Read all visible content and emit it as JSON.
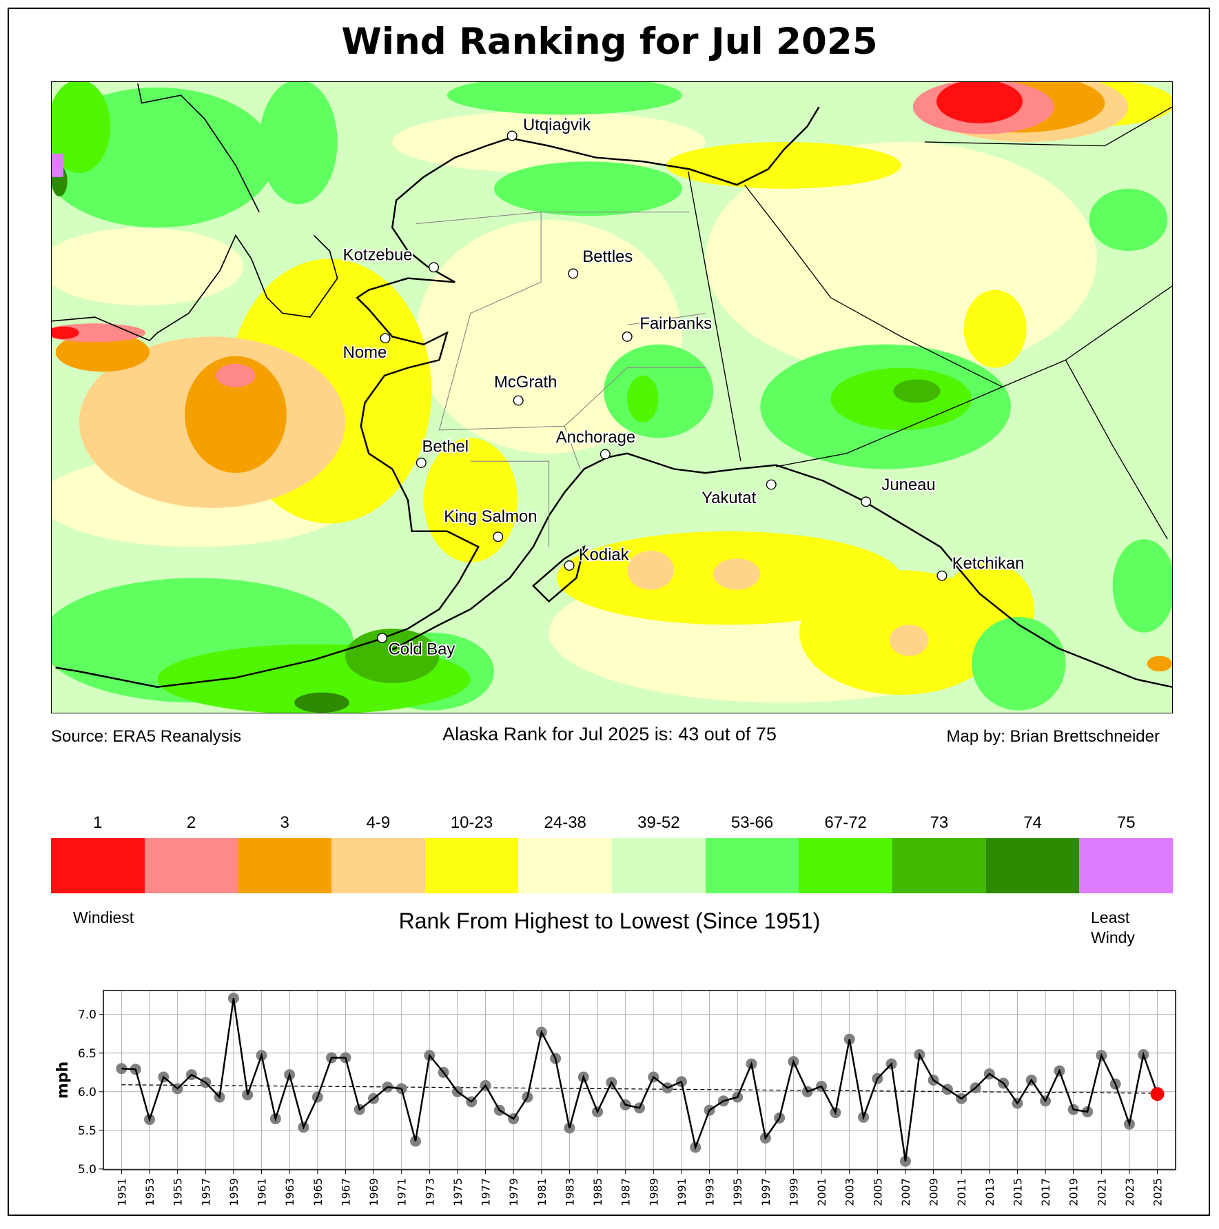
{
  "title": "Wind Ranking for Jul 2025",
  "footer": {
    "source": "Source: ERA5 Reanalysis",
    "rank_text": "Alaska Rank for Jul 2025 is: 43 out of 75",
    "credit": "Map by: Brian Brettschneider"
  },
  "map": {
    "cities": [
      "Utqiaġvik",
      "Kotzebue",
      "Bettles",
      "Fairbanks",
      "Nome",
      "McGrath",
      "Bethel",
      "Anchorage",
      "Yakutat",
      "Juneau",
      "King Salmon",
      "Kodiak",
      "Ketchikan",
      "Cold Bay"
    ]
  },
  "legend": {
    "bins": [
      {
        "label": "1",
        "color": "#ff1010"
      },
      {
        "label": "2",
        "color": "#ff8888"
      },
      {
        "label": "3",
        "color": "#f5a000"
      },
      {
        "label": "4-9",
        "color": "#ffd488"
      },
      {
        "label": "10-23",
        "color": "#ffff10"
      },
      {
        "label": "24-38",
        "color": "#ffffc8"
      },
      {
        "label": "39-52",
        "color": "#d4ffc0"
      },
      {
        "label": "53-66",
        "color": "#60ff60"
      },
      {
        "label": "67-72",
        "color": "#50f500"
      },
      {
        "label": "73",
        "color": "#40b800"
      },
      {
        "label": "74",
        "color": "#2e8a00"
      },
      {
        "label": "75",
        "color": "#e07cff"
      }
    ],
    "left_label": "Windiest",
    "center_label": "Rank From Highest to Lowest (Since 1951)",
    "right_label_1": "Least",
    "right_label_2": "Windy"
  },
  "chart_data": {
    "type": "line",
    "ylabel": "mph",
    "xlabel": "",
    "ylim": [
      4.99,
      7.31
    ],
    "xlim": [
      1949.7,
      2026.3
    ],
    "yticks": [
      "5.0",
      "5.5",
      "6.0",
      "6.5",
      "7.0"
    ],
    "grid": true,
    "x_start": 1951,
    "values": [
      6.3,
      6.29,
      5.64,
      6.19,
      6.04,
      6.22,
      6.12,
      5.93,
      7.21,
      5.96,
      6.47,
      5.65,
      6.22,
      5.54,
      5.93,
      6.44,
      6.44,
      5.77,
      5.91,
      6.06,
      6.04,
      5.36,
      6.47,
      6.25,
      6.0,
      5.87,
      6.08,
      5.76,
      5.65,
      5.93,
      6.77,
      6.43,
      5.53,
      6.19,
      5.74,
      6.12,
      5.83,
      5.79,
      6.19,
      6.05,
      6.13,
      5.28,
      5.76,
      5.88,
      5.93,
      6.36,
      5.4,
      5.66,
      6.39,
      6.0,
      6.07,
      5.73,
      6.68,
      5.67,
      6.17,
      6.36,
      5.1,
      6.48,
      6.15,
      6.03,
      5.91,
      6.05,
      6.23,
      6.11,
      5.85,
      6.15,
      5.88,
      6.27,
      5.77,
      5.74,
      6.47,
      6.1,
      5.58,
      6.48,
      5.97
    ],
    "trend": {
      "start": 6.09,
      "end": 5.98,
      "style": "dashed"
    },
    "highlight": {
      "year": 2025,
      "color": "#ff0000"
    },
    "marker_color": "#808080",
    "line_color": "#000000"
  }
}
